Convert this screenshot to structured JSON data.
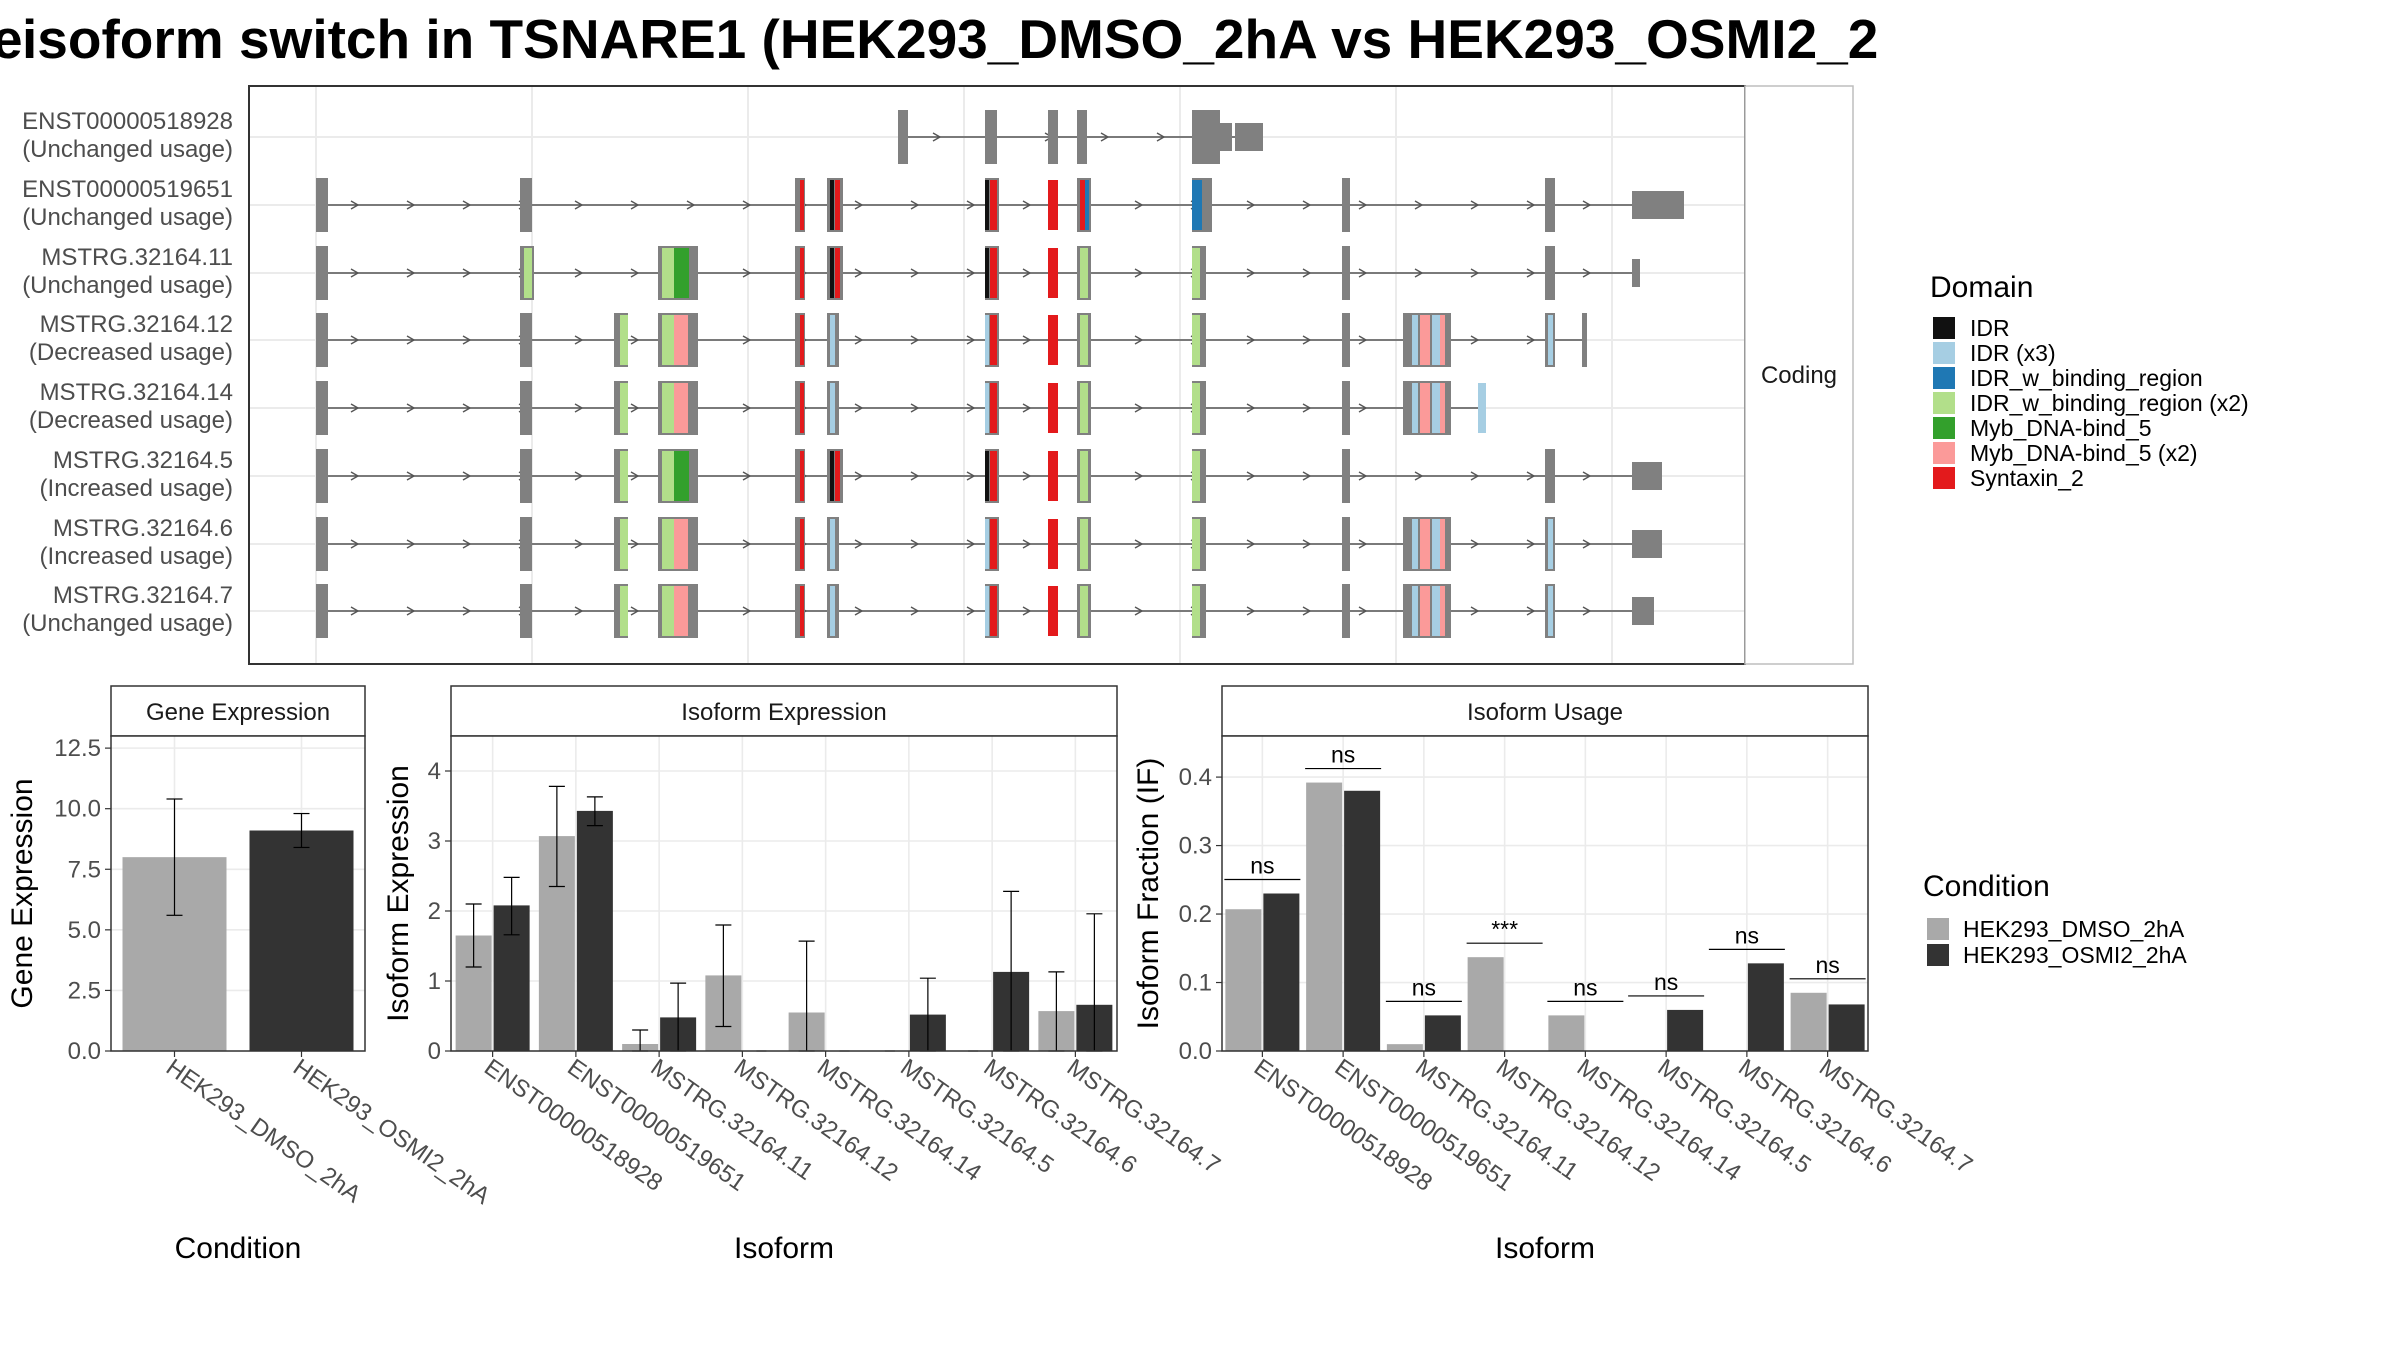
{
  "title": "isoform switch in TSNARE1 (HEK293_DMSO_2hA vs HEK293_OSMI2_2",
  "colors": {
    "dmso": "#a9a9a9",
    "osmi2": "#333333",
    "intron": "#555555",
    "exon": "#808080",
    "grid": "#ebebeb",
    "border": "#333333"
  },
  "transcript_panel": {
    "strip_label": "Coding",
    "transcripts": [
      {
        "id": "ENST00000518928",
        "usage": "(Unchanged usage)"
      },
      {
        "id": "ENST00000519651",
        "usage": "(Unchanged usage)"
      },
      {
        "id": "MSTRG.32164.11",
        "usage": "(Unchanged usage)"
      },
      {
        "id": "MSTRG.32164.12",
        "usage": "(Decreased usage)"
      },
      {
        "id": "MSTRG.32164.14",
        "usage": "(Decreased usage)"
      },
      {
        "id": "MSTRG.32164.5",
        "usage": "(Increased usage)"
      },
      {
        "id": "MSTRG.32164.6",
        "usage": "(Increased usage)"
      },
      {
        "id": "MSTRG.32164.7",
        "usage": "(Unchanged usage)"
      }
    ]
  },
  "domain_legend": {
    "title": "Domain",
    "items": [
      {
        "label": "IDR",
        "color": "#111111"
      },
      {
        "label": "IDR (x3)",
        "color": "#a6cee3"
      },
      {
        "label": "IDR_w_binding_region",
        "color": "#1f78b4"
      },
      {
        "label": "IDR_w_binding_region (x2)",
        "color": "#b2df8a"
      },
      {
        "label": "Myb_DNA-bind_5",
        "color": "#33a02c"
      },
      {
        "label": "Myb_DNA-bind_5 (x2)",
        "color": "#fb9a99"
      },
      {
        "label": "Syntaxin_2",
        "color": "#e31a1c"
      }
    ]
  },
  "condition_legend": {
    "title": "Condition",
    "items": [
      "HEK293_DMSO_2hA",
      "HEK293_OSMI2_2hA"
    ]
  },
  "chart_data": [
    {
      "type": "bar",
      "title": "Gene Expression",
      "xlabel": "Condition",
      "ylabel": "Gene Expression",
      "ylim": [
        0,
        13
      ],
      "yticks": [
        "0.0",
        "2.5",
        "5.0",
        "7.5",
        "10.0",
        "12.5"
      ],
      "categories": [
        "HEK293_DMSO_2hA",
        "HEK293_OSMI2_2hA"
      ],
      "values": [
        8.0,
        9.1
      ],
      "error_low": [
        5.6,
        8.4
      ],
      "error_high": [
        10.4,
        9.8
      ]
    },
    {
      "type": "bar",
      "title": "Isoform Expression",
      "xlabel": "Isoform",
      "ylabel": "Isoform Expression",
      "ylim": [
        0,
        4.5
      ],
      "yticks": [
        "0",
        "1",
        "2",
        "3",
        "4"
      ],
      "categories": [
        "ENST00000518928",
        "ENST00000519651",
        "MSTRG.32164.11",
        "MSTRG.32164.12",
        "MSTRG.32164.14",
        "MSTRG.32164.5",
        "MSTRG.32164.6",
        "MSTRG.32164.7"
      ],
      "series": [
        {
          "name": "HEK293_DMSO_2hA",
          "values": [
            1.65,
            3.07,
            0.1,
            1.08,
            0.55,
            0.0,
            0.0,
            0.57
          ],
          "error_low": [
            1.2,
            2.35,
            0.0,
            0.35,
            0.0,
            0.0,
            0.0,
            0.0
          ],
          "error_high": [
            2.1,
            3.78,
            0.3,
            1.8,
            1.57,
            0.0,
            0.0,
            1.13
          ]
        },
        {
          "name": "HEK293_OSMI2_2hA",
          "values": [
            2.08,
            3.43,
            0.48,
            0.0,
            0.0,
            0.52,
            1.13,
            0.66
          ],
          "error_low": [
            1.66,
            3.22,
            0.0,
            0.0,
            0.0,
            0.0,
            0.0,
            0.0
          ],
          "error_high": [
            2.48,
            3.63,
            0.97,
            0.0,
            0.0,
            1.04,
            2.28,
            1.96
          ]
        }
      ]
    },
    {
      "type": "bar",
      "title": "Isoform Usage",
      "xlabel": "Isoform",
      "ylabel": "Isoform Fraction (IF)",
      "ylim": [
        0,
        0.46
      ],
      "yticks": [
        "0.0",
        "0.1",
        "0.2",
        "0.3",
        "0.4"
      ],
      "categories": [
        "ENST00000518928",
        "ENST00000519651",
        "MSTRG.32164.11",
        "MSTRG.32164.12",
        "MSTRG.32164.14",
        "MSTRG.32164.5",
        "MSTRG.32164.6",
        "MSTRG.32164.7"
      ],
      "series": [
        {
          "name": "HEK293_DMSO_2hA",
          "values": [
            0.207,
            0.392,
            0.01,
            0.137,
            0.052,
            0.0,
            0.0,
            0.085
          ]
        },
        {
          "name": "HEK293_OSMI2_2hA",
          "values": [
            0.23,
            0.38,
            0.052,
            0.0,
            0.0,
            0.06,
            0.128,
            0.068
          ]
        }
      ],
      "significance": [
        "ns",
        "ns",
        "ns",
        "***",
        "ns",
        "ns",
        "ns",
        "ns"
      ]
    }
  ]
}
